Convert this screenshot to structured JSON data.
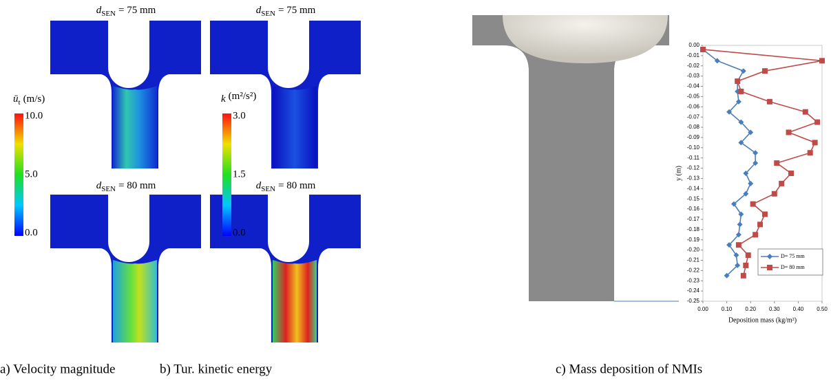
{
  "panels": [
    {
      "caption": "a) Velocity magnitude",
      "top_label": {
        "symbol": "d",
        "subscript": "SEN",
        "text": "= 75 mm"
      },
      "bottom_label": {
        "symbol": "d",
        "subscript": "SEN",
        "text": "= 80 mm"
      },
      "colorbar": {
        "symbol": "ū",
        "subscript": "t",
        "unit": "(m/s)",
        "labels": [
          "10.0",
          "5.0",
          "0.0"
        ]
      }
    },
    {
      "caption": "b) Tur. kinetic energy",
      "top_label": {
        "symbol": "d",
        "subscript": "SEN",
        "text": "= 75 mm"
      },
      "bottom_label": {
        "symbol": "d",
        "subscript": "SEN",
        "text": "= 80 mm"
      },
      "colorbar": {
        "symbol": "k",
        "subscript": "",
        "unit": "(m²/s²)",
        "labels": [
          "3.0",
          "1.5",
          "0.0"
        ]
      }
    }
  ],
  "chart_data": {
    "type": "line",
    "caption": "c) Mass deposition of NMIs",
    "xlabel": "Deposition mass (kg/m²)",
    "ylabel": "y (m)",
    "y": [
      -0.004,
      -0.015,
      -0.025,
      -0.035,
      -0.045,
      -0.055,
      -0.065,
      -0.075,
      -0.085,
      -0.095,
      -0.105,
      -0.115,
      -0.125,
      -0.135,
      -0.145,
      -0.155,
      -0.165,
      -0.175,
      -0.185,
      -0.195,
      -0.205,
      -0.215,
      -0.225
    ],
    "series": [
      {
        "name": "D= 75 mm",
        "color": "#4a7ebb",
        "marker": "diamond",
        "values": [
          0.0,
          0.06,
          0.17,
          0.145,
          0.145,
          0.15,
          0.11,
          0.16,
          0.2,
          0.16,
          0.22,
          0.22,
          0.18,
          0.2,
          0.18,
          0.13,
          0.16,
          0.155,
          0.15,
          0.11,
          0.14,
          0.145,
          0.1
        ]
      },
      {
        "name": "D= 80 mm",
        "color": "#be4b48",
        "marker": "square",
        "values": [
          0.0,
          0.5,
          0.26,
          0.145,
          0.16,
          0.28,
          0.43,
          0.48,
          0.36,
          0.47,
          0.45,
          0.31,
          0.37,
          0.33,
          0.3,
          0.21,
          0.26,
          0.24,
          0.22,
          0.15,
          0.19,
          0.18,
          0.17
        ]
      }
    ],
    "xlim": [
      0,
      0.5
    ],
    "xticks": [
      {
        "value": 0,
        "label": "0.00"
      },
      {
        "value": 0.1,
        "label": "0.10"
      },
      {
        "value": 0.2,
        "label": "0.20"
      },
      {
        "value": 0.3,
        "label": "0.30"
      },
      {
        "value": 0.4,
        "label": "0.40"
      },
      {
        "value": 0.5,
        "label": "0.50"
      }
    ],
    "ylim": [
      -0.25,
      0
    ],
    "yticks": [
      {
        "value": 0,
        "label": "0.00"
      },
      {
        "value": -0.01,
        "label": "-0.01"
      },
      {
        "value": -0.02,
        "label": "-0.02"
      },
      {
        "value": -0.03,
        "label": "-0.03"
      },
      {
        "value": -0.04,
        "label": "-0.04"
      },
      {
        "value": -0.05,
        "label": "-0.05"
      },
      {
        "value": -0.06,
        "label": "-0.06"
      },
      {
        "value": -0.07,
        "label": "-0.07"
      },
      {
        "value": -0.08,
        "label": "-0.08"
      },
      {
        "value": -0.09,
        "label": "-0.09"
      },
      {
        "value": -0.1,
        "label": "-0.10"
      },
      {
        "value": -0.11,
        "label": "-0.11"
      },
      {
        "value": -0.12,
        "label": "-0.12"
      },
      {
        "value": -0.13,
        "label": "-0.13"
      },
      {
        "value": -0.14,
        "label": "-0.14"
      },
      {
        "value": -0.15,
        "label": "-0.15"
      },
      {
        "value": -0.16,
        "label": "-0.16"
      },
      {
        "value": -0.17,
        "label": "-0.17"
      },
      {
        "value": -0.18,
        "label": "-0.18"
      },
      {
        "value": -0.19,
        "label": "-0.19"
      },
      {
        "value": -0.2,
        "label": "-0.20"
      },
      {
        "value": -0.21,
        "label": "-0.21"
      },
      {
        "value": -0.22,
        "label": "-0.22"
      },
      {
        "value": -0.23,
        "label": "-0.23"
      },
      {
        "value": -0.24,
        "label": "-0.24"
      },
      {
        "value": -0.25,
        "label": "-0.25"
      }
    ],
    "legend": "lower right"
  }
}
